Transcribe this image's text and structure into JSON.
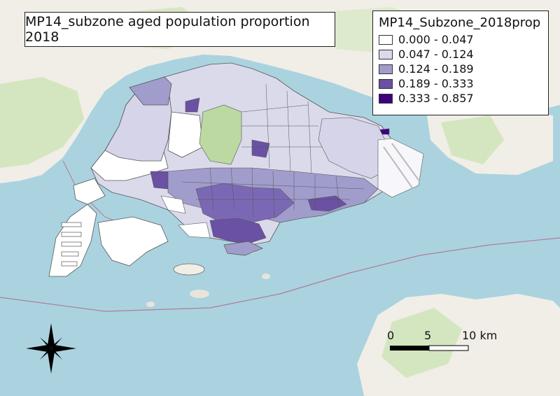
{
  "map_title": "MP14_subzone aged population proportion 2018",
  "legend": {
    "title": "MP14_Subzone_2018prop",
    "classes": [
      {
        "label": "0.000 - 0.047",
        "color": "#ffffff"
      },
      {
        "label": "0.047 - 0.124",
        "color": "#dadaeb"
      },
      {
        "label": "0.124 - 0.189",
        "color": "#a09dcc"
      },
      {
        "label": "0.189 - 0.333",
        "color": "#6a51a3"
      },
      {
        "label": "0.333 - 0.857",
        "color": "#3f007d"
      }
    ]
  },
  "scale_bar": {
    "labels": [
      "0",
      "5",
      "10 km"
    ],
    "unit": "km"
  },
  "north_arrow": "compass-rose-icon",
  "colors": {
    "water": "#aad3df",
    "land": "#f2efe9",
    "park": "#c8e0b0",
    "road": "#f6a27a",
    "boundary": "#b07aa1"
  }
}
